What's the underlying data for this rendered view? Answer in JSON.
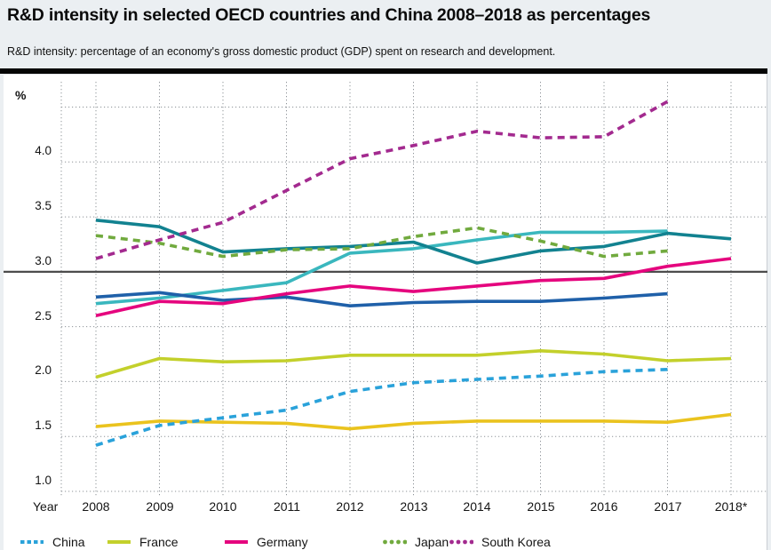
{
  "header": {
    "title": "R&D intensity in selected OECD countries and China 2008–2018 as percentages",
    "subtitle": "R&D intensity: percentage of an economy's gross domestic product (GDP) spent on research and development."
  },
  "axes": {
    "percent_label": "%",
    "year_label": "Year"
  },
  "legend": {
    "items": [
      {
        "label": "China",
        "color": "#2aa2da",
        "swatch": "dashes",
        "x": 22
      },
      {
        "label": "France",
        "color": "#c3d02b",
        "swatch": "line",
        "x": 120
      },
      {
        "label": "Germany",
        "color": "#e5057e",
        "swatch": "line",
        "x": 252
      },
      {
        "label": "Japan",
        "color": "#71aa3e",
        "swatch": "dots",
        "x": 430
      },
      {
        "label": "South Korea",
        "color": "#a32a8f",
        "swatch": "dots",
        "x": 505
      }
    ]
  },
  "colors": {
    "page_bg": "#ebeff2",
    "panel_bg": "#ffffff",
    "grid": "#8f9499",
    "reference_line": "#4c4c4c",
    "rule": "#050505"
  },
  "chart_data": {
    "type": "line",
    "x_labels": [
      "2008",
      "2009",
      "2010",
      "2011",
      "2012",
      "2013",
      "2014",
      "2015",
      "2016",
      "2017",
      "2018*"
    ],
    "ylim": [
      0.95,
      4.75
    ],
    "yticks": [
      {
        "label": "4.0",
        "value": 4.0
      },
      {
        "label": "3.5",
        "value": 3.5
      },
      {
        "label": "3.0",
        "value": 3.0
      },
      {
        "label": "2.5",
        "value": 2.5
      },
      {
        "label": "2.0",
        "value": 2.0
      },
      {
        "label": "1.5",
        "value": 1.5
      },
      {
        "label": "1.0",
        "value": 1.0
      }
    ],
    "gridline_values": [
      4.5,
      4.0,
      3.5,
      2.5,
      2.0,
      1.5,
      1.0
    ],
    "reference_line_value": 3.0,
    "grid_on": true,
    "legend_position": "bottom",
    "series": [
      {
        "name": "unlabeled-cyan",
        "color": "#3ab7be",
        "style": "solid",
        "values": [
          2.71,
          2.76,
          2.83,
          2.9,
          3.17,
          3.21,
          3.29,
          3.36,
          3.36,
          3.37,
          null
        ]
      },
      {
        "name": "unlabeled-blue",
        "color": "#1f60a9",
        "style": "solid",
        "values": [
          2.77,
          2.81,
          2.74,
          2.77,
          2.69,
          2.72,
          2.73,
          2.73,
          2.76,
          2.8,
          null
        ]
      },
      {
        "name": "unlabeled-gold",
        "color": "#eac31e",
        "style": "solid",
        "values": [
          1.59,
          1.64,
          1.63,
          1.62,
          1.57,
          1.62,
          1.64,
          1.64,
          1.64,
          1.63,
          1.7
        ]
      },
      {
        "name": "France",
        "color": "#c3d02b",
        "style": "solid",
        "values": [
          2.04,
          2.21,
          2.18,
          2.19,
          2.24,
          2.24,
          2.24,
          2.28,
          2.25,
          2.19,
          2.21
        ]
      },
      {
        "name": "Germany",
        "color": "#e5057e",
        "style": "solid",
        "values": [
          2.6,
          2.73,
          2.71,
          2.8,
          2.87,
          2.82,
          2.87,
          2.92,
          2.94,
          3.05,
          3.12
        ]
      },
      {
        "name": "unlabeled-teal",
        "color": "#128290",
        "style": "solid",
        "values": [
          3.47,
          3.41,
          3.18,
          3.21,
          3.23,
          3.27,
          3.08,
          3.19,
          3.23,
          3.35,
          3.3
        ]
      },
      {
        "name": "Japan",
        "color": "#71aa3e",
        "style": "dashed",
        "values": [
          3.33,
          3.26,
          3.14,
          3.2,
          3.21,
          3.32,
          3.4,
          3.28,
          3.14,
          3.19,
          null
        ]
      },
      {
        "name": "South Korea",
        "color": "#a32a8f",
        "style": "dashed",
        "values": [
          3.12,
          3.29,
          3.45,
          3.74,
          4.03,
          4.15,
          4.28,
          4.22,
          4.23,
          4.55,
          null
        ]
      },
      {
        "name": "China",
        "color": "#2aa2da",
        "style": "dashed",
        "values": [
          1.42,
          1.6,
          1.67,
          1.74,
          1.91,
          1.99,
          2.02,
          2.05,
          2.09,
          2.11,
          null
        ]
      }
    ]
  }
}
